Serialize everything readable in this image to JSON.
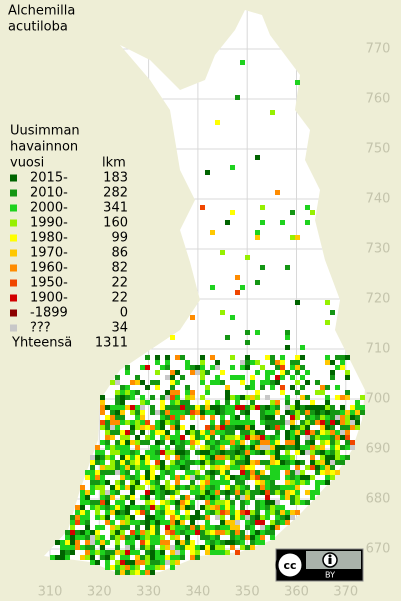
{
  "title": [
    "Alchemilla",
    "acutiloba"
  ],
  "legend": {
    "heading": [
      "Uusimman",
      "havainnon",
      "vuosi"
    ],
    "count_heading": "lkm",
    "entries": [
      {
        "label": "2015-",
        "count": 183,
        "color": "#006400"
      },
      {
        "label": "2010-",
        "count": 282,
        "color": "#149614"
      },
      {
        "label": "2000-",
        "count": 341,
        "color": "#1ed21e"
      },
      {
        "label": "1990-",
        "count": 160,
        "color": "#96f000"
      },
      {
        "label": "1980-",
        "count": 99,
        "color": "#ffff00"
      },
      {
        "label": "1970-",
        "count": 86,
        "color": "#ffc800"
      },
      {
        "label": "1960-",
        "count": 82,
        "color": "#ff8c00"
      },
      {
        "label": "1950-",
        "count": 22,
        "color": "#f04600"
      },
      {
        "label": "1900-",
        "count": 22,
        "color": "#d20000"
      },
      {
        "label": "-1899",
        "count": 0,
        "color": "#8c0000"
      },
      {
        "label": "???",
        "count": 34,
        "color": "#c8c8c8"
      }
    ],
    "total_label": "Yhteensä",
    "total": 1311
  },
  "y_axis": {
    "ticks": [
      670,
      680,
      690,
      700,
      710,
      720,
      730,
      740,
      750,
      760,
      770
    ]
  },
  "x_axis": {
    "ticks": [
      310,
      320,
      330,
      340,
      350,
      360,
      370
    ]
  },
  "license_badge": "BY"
}
